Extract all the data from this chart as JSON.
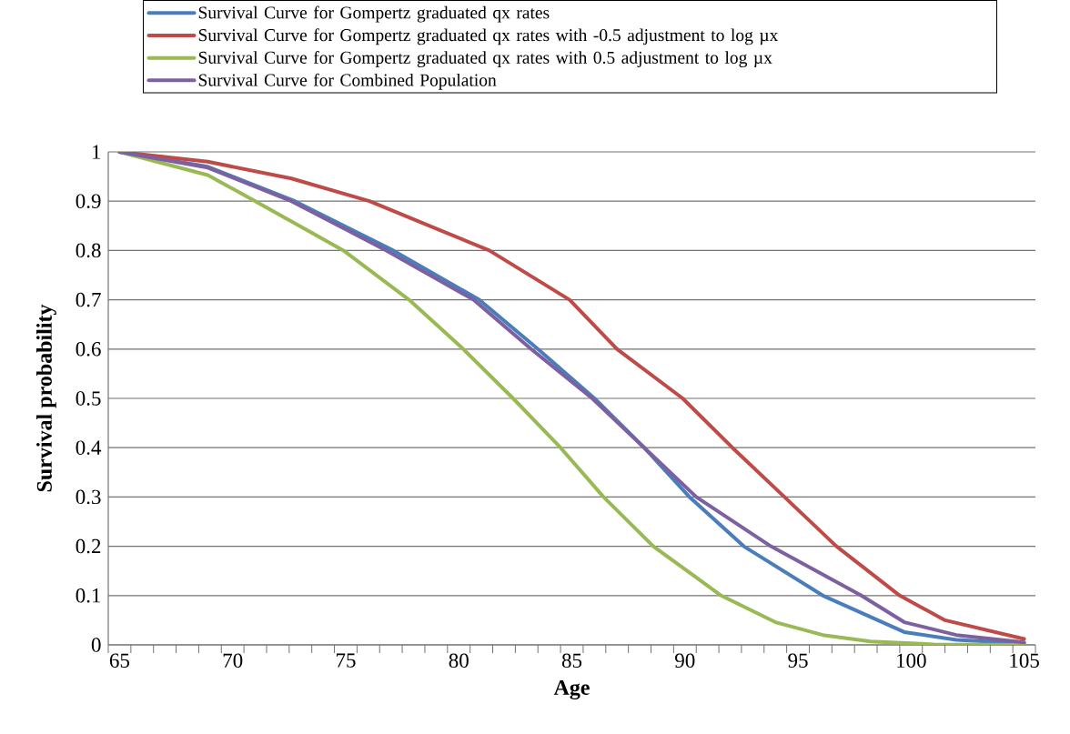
{
  "chart_data": {
    "type": "line",
    "xlabel": "Age",
    "ylabel": "Survival probability",
    "xlim": [
      64.5,
      105.5
    ],
    "ylim": [
      0,
      1
    ],
    "xticks": [
      65,
      70,
      75,
      80,
      85,
      90,
      95,
      100,
      105,
      {
        "value": 64.5,
        "label": null
      },
      {
        "value": 65.5,
        "label": null
      },
      {
        "value": 66.5,
        "label": null
      },
      {
        "value": 67.5,
        "label": null
      },
      {
        "value": 68.5,
        "label": null
      },
      {
        "value": 69.5,
        "label": null
      },
      {
        "value": 70.5,
        "label": null
      },
      {
        "value": 71.5,
        "label": null
      },
      {
        "value": 72.5,
        "label": null
      },
      {
        "value": 73.5,
        "label": null
      },
      {
        "value": 74.5,
        "label": null
      },
      {
        "value": 75.5,
        "label": null
      },
      {
        "value": 76.5,
        "label": null
      },
      {
        "value": 77.5,
        "label": null
      },
      {
        "value": 78.5,
        "label": null
      },
      {
        "value": 79.5,
        "label": null
      },
      {
        "value": 80.5,
        "label": null
      },
      {
        "value": 81.5,
        "label": null
      },
      {
        "value": 82.5,
        "label": null
      },
      {
        "value": 83.5,
        "label": null
      },
      {
        "value": 84.5,
        "label": null
      },
      {
        "value": 85.5,
        "label": null
      },
      {
        "value": 86.5,
        "label": null
      },
      {
        "value": 87.5,
        "label": null
      },
      {
        "value": 88.5,
        "label": null
      },
      {
        "value": 89.5,
        "label": null
      },
      {
        "value": 90.5,
        "label": null
      },
      {
        "value": 91.5,
        "label": null
      },
      {
        "value": 92.5,
        "label": null
      },
      {
        "value": 93.5,
        "label": null
      },
      {
        "value": 94.5,
        "label": null
      },
      {
        "value": 95.5,
        "label": null
      },
      {
        "value": 96.5,
        "label": null
      },
      {
        "value": 97.5,
        "label": null
      },
      {
        "value": 98.5,
        "label": null
      },
      {
        "value": 99.5,
        "label": null
      },
      {
        "value": 100.5,
        "label": null
      },
      {
        "value": 101.5,
        "label": null
      },
      {
        "value": 102.5,
        "label": null
      },
      {
        "value": 103.5,
        "label": null
      },
      {
        "value": 104.5,
        "label": null
      },
      {
        "value": 105.5,
        "label": null
      }
    ],
    "yticks": [
      0,
      0.1,
      0.2,
      0.3,
      0.4,
      0.5,
      0.6,
      0.7,
      0.8,
      0.9,
      1
    ],
    "grid": "y",
    "legend": "top",
    "marker": "none",
    "line_style": "solid",
    "series": [
      {
        "name": "Survival Curve for Gompertz graduated qx rates",
        "color": "#4a7ebb",
        "x": [
          65,
          68.9,
          72.75,
          77.1,
          80.9,
          83.5,
          86,
          88.2,
          90.2,
          92.6,
          96.1,
          99.7,
          102,
          105
        ],
        "values": [
          1,
          0.97,
          0.9,
          0.8,
          0.7,
          0.6,
          0.5,
          0.4,
          0.3,
          0.2,
          0.1,
          0.026,
          0.01,
          0.003
        ]
      },
      {
        "name": "Survival Curve for Gompertz graduated qx rates with -0.5 adjustment to log µx",
        "color": "#be4b48",
        "x": [
          65,
          68.9,
          72.6,
          76.05,
          81.35,
          84.9,
          87,
          89.9,
          92.1,
          94.4,
          96.7,
          99.5,
          101.5,
          105
        ],
        "values": [
          1,
          0.98,
          0.946,
          0.9,
          0.8,
          0.7,
          0.6,
          0.5,
          0.4,
          0.3,
          0.2,
          0.1,
          0.05,
          0.012
        ]
      },
      {
        "name": "Survival Curve for Gompertz graduated qx rates with 0.5 adjustment to log µx",
        "color": "#98b954",
        "x": [
          65,
          68.9,
          71,
          74.9,
          77.8,
          80.2,
          82.4,
          84.5,
          86.4,
          88.6,
          91.6,
          94,
          96.1,
          98.2,
          101,
          105
        ],
        "values": [
          1,
          0.953,
          0.9,
          0.8,
          0.7,
          0.6,
          0.5,
          0.4,
          0.3,
          0.2,
          0.1,
          0.046,
          0.02,
          0.007,
          0.001,
          0
        ]
      },
      {
        "name": "Survival Curve for Combined Population",
        "color": "#7d60a0",
        "x": [
          65,
          68.9,
          72.6,
          76.8,
          80.65,
          83.2,
          85.9,
          88.2,
          90.5,
          93.8,
          97.8,
          99.7,
          102,
          105
        ],
        "values": [
          1,
          0.968,
          0.9,
          0.8,
          0.7,
          0.6,
          0.5,
          0.4,
          0.3,
          0.2,
          0.1,
          0.046,
          0.02,
          0.005
        ]
      }
    ]
  }
}
